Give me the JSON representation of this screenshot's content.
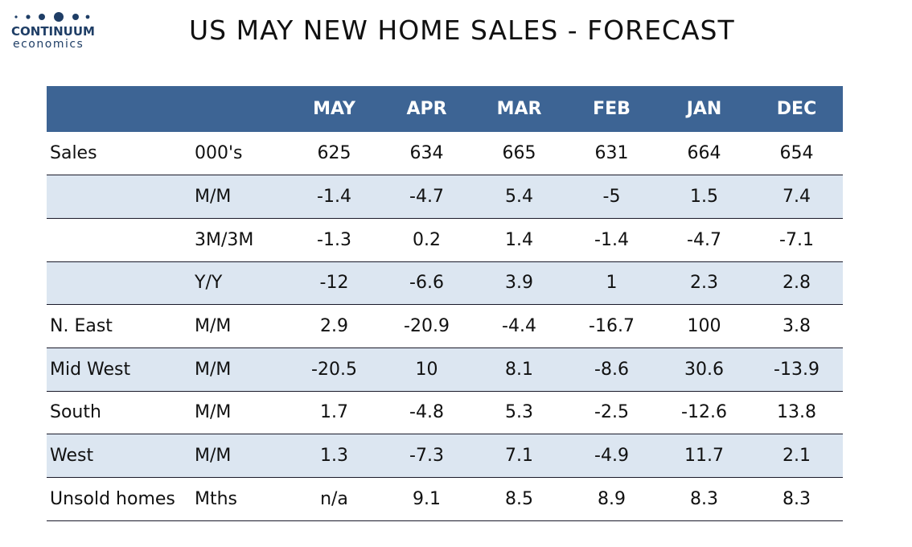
{
  "logo": {
    "word": "CONTINUUM",
    "sub": "economics",
    "color": "#1f3e66"
  },
  "title": "US MAY NEW HOME SALES - FORECAST",
  "colors": {
    "header_bg": "#3d6494",
    "header_text": "#ffffff",
    "row_shade": "#dce6f1"
  },
  "table": {
    "columns": [
      "",
      "",
      "MAY",
      "APR",
      "MAR",
      "FEB",
      "JAN",
      "DEC"
    ],
    "rows": [
      {
        "label": "Sales",
        "unit": "000's",
        "values": [
          "625",
          "634",
          "665",
          "631",
          "664",
          "654"
        ],
        "shaded": false
      },
      {
        "label": "",
        "unit": "M/M",
        "values": [
          "-1.4",
          "-4.7",
          "5.4",
          "-5",
          "1.5",
          "7.4"
        ],
        "shaded": true
      },
      {
        "label": "",
        "unit": "3M/3M",
        "values": [
          "-1.3",
          "0.2",
          "1.4",
          "-1.4",
          "-4.7",
          "-7.1"
        ],
        "shaded": false
      },
      {
        "label": "",
        "unit": "Y/Y",
        "values": [
          "-12",
          "-6.6",
          "3.9",
          "1",
          "2.3",
          "2.8"
        ],
        "shaded": true
      },
      {
        "label": "N. East",
        "unit": "M/M",
        "values": [
          "2.9",
          "-20.9",
          "-4.4",
          "-16.7",
          "100",
          "3.8"
        ],
        "shaded": false
      },
      {
        "label": "Mid West",
        "unit": "M/M",
        "values": [
          "-20.5",
          "10",
          "8.1",
          "-8.6",
          "30.6",
          "-13.9"
        ],
        "shaded": true
      },
      {
        "label": "South",
        "unit": "M/M",
        "values": [
          "1.7",
          "-4.8",
          "5.3",
          "-2.5",
          "-12.6",
          "13.8"
        ],
        "shaded": false
      },
      {
        "label": "West",
        "unit": "M/M",
        "values": [
          "1.3",
          "-7.3",
          "7.1",
          "-4.9",
          "11.7",
          "2.1"
        ],
        "shaded": true
      },
      {
        "label": "Unsold homes",
        "unit": "Mths",
        "values": [
          "n/a",
          "9.1",
          "8.5",
          "8.9",
          "8.3",
          "8.3"
        ],
        "shaded": false
      }
    ]
  }
}
